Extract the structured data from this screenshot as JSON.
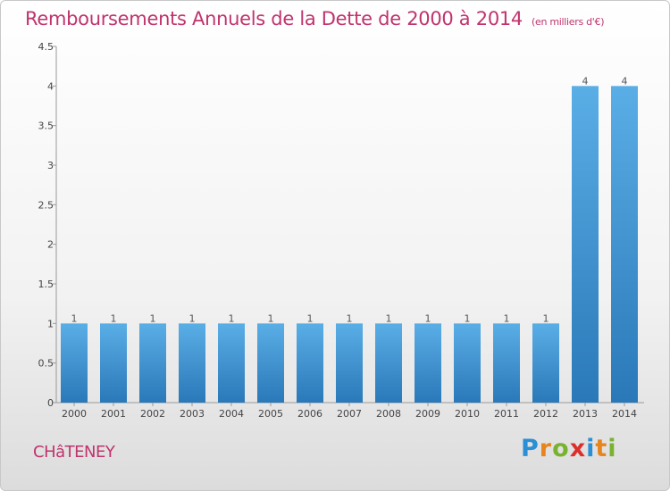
{
  "chart_data": {
    "type": "bar",
    "title": "Remboursements Annuels de la Dette de 2000 à 2014",
    "subtitle": "(en milliers d'€)",
    "xlabel": "",
    "ylabel": "",
    "categories": [
      "2000",
      "2001",
      "2002",
      "2003",
      "2004",
      "2005",
      "2006",
      "2007",
      "2008",
      "2009",
      "2010",
      "2011",
      "2012",
      "2013",
      "2014"
    ],
    "values": [
      1,
      1,
      1,
      1,
      1,
      1,
      1,
      1,
      1,
      1,
      1,
      1,
      1,
      4,
      4
    ],
    "data_labels": [
      "1",
      "1",
      "1",
      "1",
      "1",
      "1",
      "1",
      "1",
      "1",
      "1",
      "1",
      "1",
      "1",
      "4",
      "4"
    ],
    "ylim": [
      0,
      4.5
    ],
    "yticks": [
      0,
      0.5,
      1,
      1.5,
      2,
      2.5,
      3,
      3.5,
      4,
      4.5
    ],
    "ytick_labels": [
      "0",
      "0.5",
      "1",
      "1.5",
      "2",
      "2.5",
      "3",
      "3.5",
      "4",
      "4.5"
    ],
    "grid": false,
    "legend": "none",
    "colors": {
      "bar_top": "#5aaee6",
      "bar_bottom": "#2a78b8",
      "title": "#c0336d"
    }
  },
  "footer": {
    "city": "CHâTENEY",
    "logo_letters": [
      "P",
      "r",
      "o",
      "x",
      "i",
      "t",
      "i"
    ],
    "logo_colors": [
      "#2b8fd6",
      "#e8841c",
      "#78b22e",
      "#d9302b",
      "#2b8fd6",
      "#e8841c",
      "#78b22e"
    ]
  }
}
